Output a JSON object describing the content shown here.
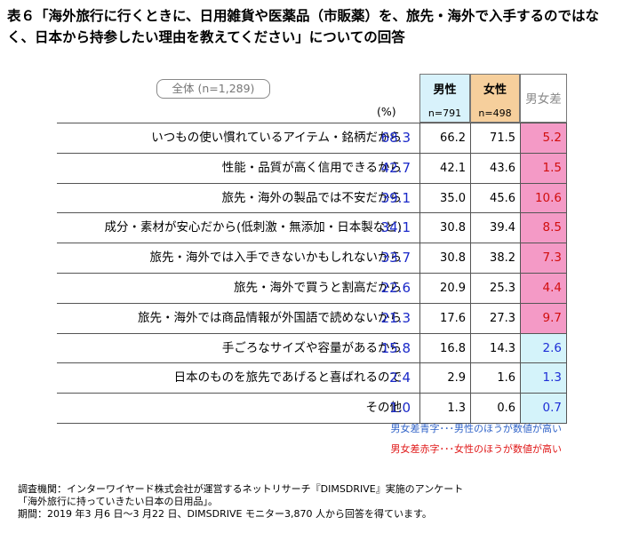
{
  "title": "表６「海外旅行に行くときに、日用雑貨や医薬品（市販薬）を、旅先・海外で入手するのではなく、日本から持参したい理由を教えてください」についての回答",
  "table": {
    "total_label": "全体 (n=1,289)",
    "pct_unit": "(%)",
    "male": {
      "label": "男性",
      "n": "n=791"
    },
    "female": {
      "label": "女性",
      "n": "n=498"
    },
    "diff_label": "男女差",
    "rows": [
      {
        "label": "いつもの使い慣れているアイテム・銘柄だから",
        "total": "68.3",
        "male": "66.2",
        "female": "71.5",
        "diff": "5.2",
        "diff_color": "red"
      },
      {
        "label": "性能・品質が高く信用できるから",
        "total": "42.7",
        "male": "42.1",
        "female": "43.6",
        "diff": "1.5",
        "diff_color": "red"
      },
      {
        "label": "旅先・海外の製品では不安だから",
        "total": "39.1",
        "male": "35.0",
        "female": "45.6",
        "diff": "10.6",
        "diff_color": "red"
      },
      {
        "label": "成分・素材が安心だから(低刺激・無添加・日本製など)",
        "total": "34.1",
        "male": "30.8",
        "female": "39.4",
        "diff": "8.5",
        "diff_color": "red"
      },
      {
        "label": "旅先・海外では入手できないかもしれないから",
        "total": "33.7",
        "male": "30.8",
        "female": "38.2",
        "diff": "7.3",
        "diff_color": "red"
      },
      {
        "label": "旅先・海外で買うと割高だから",
        "total": "22.6",
        "male": "20.9",
        "female": "25.3",
        "diff": "4.4",
        "diff_color": "red"
      },
      {
        "label": "旅先・海外では商品情報が外国語で読めないから",
        "total": "21.3",
        "male": "17.6",
        "female": "27.3",
        "diff": "9.7",
        "diff_color": "red"
      },
      {
        "label": "手ごろなサイズや容量があるから",
        "total": "15.8",
        "male": "16.8",
        "female": "14.3",
        "diff": "2.6",
        "diff_color": "blue"
      },
      {
        "label": "日本のものを旅先であげると喜ばれるので",
        "total": "2.4",
        "male": "2.9",
        "female": "1.6",
        "diff": "1.3",
        "diff_color": "blue"
      },
      {
        "label": "その他",
        "total": "1.0",
        "male": "1.3",
        "female": "0.6",
        "diff": "0.7",
        "diff_color": "blue"
      }
    ]
  },
  "legend": {
    "blue": "男女差青字･･･男性のほうが数値が高い",
    "red": "男女差赤字･･･女性のほうが数値が高い"
  },
  "footer": {
    "line1": "調査機関：インターワイヤード株式会社が運営するネットリサーチ『DIMSDRIVE』実施のアンケート",
    "line2": "「海外旅行に持っていきたい日本の日用品」。",
    "line3": "期間：2019 年3 月6 日～3 月22 日、DIMSDRIVE モニター3,870 人から回答を得ています。"
  },
  "colors": {
    "total_value": "#1a29c8",
    "male_header_bg": "#d8f2fb",
    "female_header_bg": "#f6cf9c",
    "diff_red_bg": "#f49ac6",
    "diff_red_text": "#d10e0e",
    "diff_blue_bg": "#d4f3fa",
    "diff_blue_text": "#1e2ed6"
  }
}
